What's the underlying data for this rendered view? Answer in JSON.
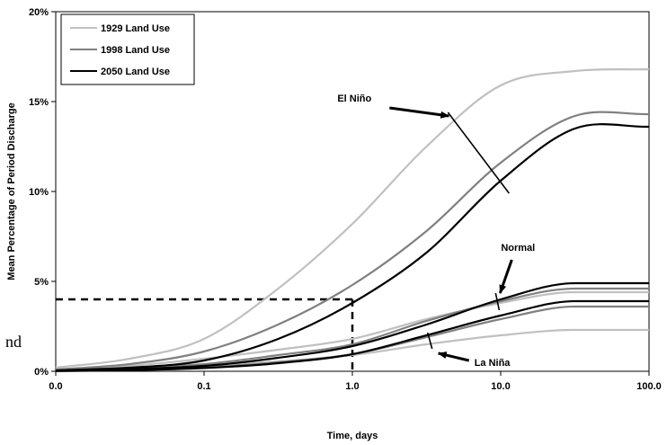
{
  "chart_data": {
    "type": "line",
    "xlabel": "Time, days",
    "ylabel": "Mean Percentage of Period Discharge",
    "x_scale": "log",
    "xlim": [
      0.01,
      100
    ],
    "ylim": [
      0,
      20
    ],
    "x_ticks": [
      0.01,
      0.1,
      1,
      10,
      100
    ],
    "x_tick_labels": [
      "0.0",
      "0.1",
      "1.0",
      "10.0",
      "100.0"
    ],
    "y_ticks": [
      0,
      5,
      10,
      15,
      20
    ],
    "y_tick_labels": [
      "0%",
      "5%",
      "10%",
      "15%",
      "20%"
    ],
    "grid": false,
    "legend_position": "top-left",
    "legend": [
      {
        "label": "1929 Land Use",
        "color": "#c0c0c0"
      },
      {
        "label": "1998 Land Use",
        "color": "#808080"
      },
      {
        "label": "2050 Land Use",
        "color": "#000000"
      }
    ],
    "x": [
      0.01,
      0.0316,
      0.1,
      0.316,
      1,
      3.16,
      10,
      31.6,
      100
    ],
    "groups": [
      {
        "condition": "El Niño",
        "series": [
          {
            "land_use": "1929 Land Use",
            "color": "#c0c0c0",
            "y": [
              0.2,
              0.7,
              1.8,
              4.6,
              8.2,
              12.5,
              15.9,
              16.7,
              16.8
            ]
          },
          {
            "land_use": "1998 Land Use",
            "color": "#808080",
            "y": [
              0.1,
              0.4,
              1.1,
              2.6,
              4.8,
              7.8,
              11.6,
              14.2,
              14.3
            ]
          },
          {
            "land_use": "2050 Land Use",
            "color": "#000000",
            "y": [
              0.05,
              0.2,
              0.6,
              1.8,
              3.8,
              6.6,
              10.6,
              13.5,
              13.6
            ]
          }
        ]
      },
      {
        "condition": "Normal",
        "series": [
          {
            "land_use": "1929 Land Use",
            "color": "#c0c0c0",
            "y": [
              0.1,
              0.3,
              0.7,
              1.2,
              1.8,
              2.9,
              3.8,
              4.4,
              4.4
            ]
          },
          {
            "land_use": "1998 Land Use",
            "color": "#808080",
            "y": [
              0.05,
              0.2,
              0.4,
              0.9,
              1.5,
              2.8,
              3.9,
              4.6,
              4.6
            ]
          },
          {
            "land_use": "2050 Land Use",
            "color": "#000000",
            "y": [
              0.03,
              0.12,
              0.3,
              0.75,
              1.4,
              2.6,
              4.0,
              4.9,
              4.9
            ]
          }
        ]
      },
      {
        "condition": "La Niña",
        "series": [
          {
            "land_use": "1929 Land Use",
            "color": "#c0c0c0",
            "y": [
              0.03,
              0.12,
              0.3,
              0.55,
              0.9,
              1.5,
              2.0,
              2.3,
              2.3
            ]
          },
          {
            "land_use": "1998 Land Use",
            "color": "#808080",
            "y": [
              0.02,
              0.08,
              0.22,
              0.5,
              0.95,
              1.9,
              2.9,
              3.6,
              3.6
            ]
          },
          {
            "land_use": "2050 Land Use",
            "color": "#000000",
            "y": [
              0.01,
              0.06,
              0.18,
              0.45,
              0.95,
              2.0,
              3.1,
              3.9,
              3.9
            ]
          }
        ]
      }
    ],
    "reference_line": {
      "x": 1.0,
      "y": 4,
      "style": "dashed"
    },
    "annotations": [
      {
        "text": "El Niño",
        "target_x": 5,
        "target_y": 14
      },
      {
        "text": "Normal",
        "target_x": 9.5,
        "target_y": 4.2
      },
      {
        "text": "La Niña",
        "target_x": 3.4,
        "target_y": 1.8
      }
    ]
  },
  "stray_text": "nd"
}
